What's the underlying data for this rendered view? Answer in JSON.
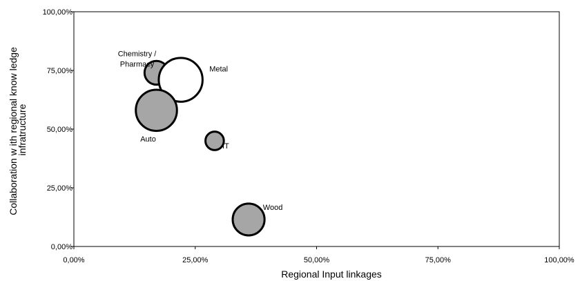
{
  "chart_data": {
    "type": "bubble",
    "xlabel": "Regional  Input linkages",
    "ylabel": [
      "Collaboration w ith regional know ledge",
      "infratructure"
    ],
    "xlim": [
      0,
      100
    ],
    "ylim": [
      0,
      100
    ],
    "x_ticks": [
      "0,00%",
      "25,00%",
      "50,00%",
      "75,00%",
      "100,00%"
    ],
    "y_ticks": [
      "0,00%",
      "25,00%",
      "50,00%",
      "75,00%",
      "100,00%"
    ],
    "grid": false,
    "points": [
      {
        "label": [
          "Chemistry /",
          "Pharmacy"
        ],
        "x": 17.0,
        "y": 74.0,
        "size": 1.0,
        "fill": "#a6a6a6"
      },
      {
        "label": [
          "Metal"
        ],
        "x": 22.0,
        "y": 71.0,
        "size": 3.4,
        "fill": "#ffffff"
      },
      {
        "label": [
          "Auto"
        ],
        "x": 17.0,
        "y": 58.0,
        "size": 3.0,
        "fill": "#a6a6a6"
      },
      {
        "label": [
          "IT"
        ],
        "x": 29.0,
        "y": 45.0,
        "size": 0.6,
        "fill": "#a6a6a6"
      },
      {
        "label": [
          "Wood"
        ],
        "x": 36.0,
        "y": 11.5,
        "size": 1.8,
        "fill": "#a6a6a6"
      }
    ]
  }
}
